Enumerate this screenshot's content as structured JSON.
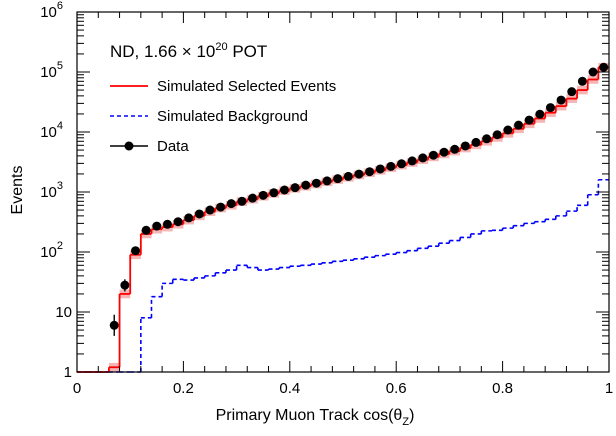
{
  "chart_data": {
    "type": "line",
    "annotation": {
      "prefix": "ND, 1.66 × 10",
      "exponent": "20",
      "suffix": " POT"
    },
    "xlabel": {
      "prefix": "Primary Muon Track cos(θ",
      "subscript": "Z",
      "suffix": ")"
    },
    "ylabel": "Events",
    "xlim": [
      0,
      1
    ],
    "ylim": [
      1,
      1000000
    ],
    "yscale": "log",
    "x_ticks": [
      {
        "value": 0,
        "label": "0"
      },
      {
        "value": 0.2,
        "label": "0.2"
      },
      {
        "value": 0.4,
        "label": "0.4"
      },
      {
        "value": 0.6,
        "label": "0.6"
      },
      {
        "value": 0.8,
        "label": "0.8"
      },
      {
        "value": 1,
        "label": "1"
      }
    ],
    "y_ticks": [
      {
        "value": 1,
        "label": "1",
        "exp": ""
      },
      {
        "value": 10,
        "label": "10",
        "exp": ""
      },
      {
        "value": 100,
        "label": "10",
        "exp": "2"
      },
      {
        "value": 1000,
        "label": "10",
        "exp": "3"
      },
      {
        "value": 10000,
        "label": "10",
        "exp": "4"
      },
      {
        "value": 100000,
        "label": "10",
        "exp": "5"
      },
      {
        "value": 1000000,
        "label": "10",
        "exp": "6"
      }
    ],
    "grid": false,
    "legend_position": "top-left",
    "bin_edges": [
      0,
      0.02,
      0.04,
      0.06,
      0.08,
      0.1,
      0.12,
      0.14,
      0.16,
      0.18,
      0.2,
      0.22,
      0.24,
      0.26,
      0.28,
      0.3,
      0.32,
      0.34,
      0.36,
      0.38,
      0.4,
      0.42,
      0.44,
      0.46,
      0.48,
      0.5,
      0.52,
      0.54,
      0.56,
      0.58,
      0.6,
      0.62,
      0.64,
      0.66,
      0.68,
      0.7,
      0.72,
      0.74,
      0.76,
      0.78,
      0.8,
      0.82,
      0.84,
      0.86,
      0.88,
      0.9,
      0.92,
      0.94,
      0.96,
      0.98,
      1.0
    ],
    "series": [
      {
        "name": "Simulated Selected Events",
        "style": "histogram",
        "color": "#ff0000",
        "band_color": "#f4a8a8",
        "values": [
          1,
          1,
          1,
          1.2,
          20,
          90,
          200,
          240,
          260,
          290,
          340,
          400,
          470,
          540,
          600,
          690,
          760,
          850,
          950,
          1050,
          1150,
          1250,
          1360,
          1480,
          1610,
          1760,
          1920,
          2100,
          2300,
          2550,
          2800,
          3100,
          3450,
          3850,
          4300,
          4800,
          5400,
          6100,
          7000,
          8100,
          9500,
          11300,
          13700,
          16800,
          21000,
          27000,
          36000,
          50000,
          75000,
          120000
        ]
      },
      {
        "name": "Simulated Background",
        "style": "histogram",
        "color": "#0000ff",
        "dashed": true,
        "values": [
          1,
          1,
          1,
          1,
          1,
          1,
          8,
          18,
          30,
          35,
          34,
          37,
          40,
          45,
          50,
          60,
          55,
          50,
          52,
          55,
          58,
          60,
          63,
          66,
          70,
          73,
          77,
          82,
          87,
          92,
          98,
          105,
          115,
          125,
          140,
          155,
          175,
          200,
          225,
          230,
          250,
          275,
          300,
          320,
          350,
          400,
          480,
          600,
          900,
          1600
        ]
      },
      {
        "name": "Data",
        "style": "points",
        "color": "#000000",
        "x": [
          0.07,
          0.09,
          0.11,
          0.13,
          0.15,
          0.17,
          0.19,
          0.21,
          0.23,
          0.25,
          0.27,
          0.29,
          0.31,
          0.33,
          0.35,
          0.37,
          0.39,
          0.41,
          0.43,
          0.45,
          0.47,
          0.49,
          0.51,
          0.53,
          0.55,
          0.57,
          0.59,
          0.61,
          0.63,
          0.65,
          0.67,
          0.69,
          0.71,
          0.73,
          0.75,
          0.77,
          0.79,
          0.81,
          0.83,
          0.85,
          0.87,
          0.89,
          0.91,
          0.93,
          0.95,
          0.97,
          0.99
        ],
        "y": [
          6,
          28,
          105,
          230,
          270,
          290,
          320,
          370,
          430,
          500,
          560,
          640,
          700,
          790,
          880,
          970,
          1080,
          1180,
          1300,
          1400,
          1530,
          1670,
          1820,
          1990,
          2180,
          2420,
          2670,
          2950,
          3300,
          3700,
          4100,
          4600,
          5150,
          5850,
          6700,
          7700,
          9000,
          10800,
          13000,
          15800,
          19800,
          25500,
          34000,
          47000,
          70000,
          100000,
          120000
        ],
        "err_low": [
          4,
          22,
          95,
          218,
          257,
          277,
          306,
          356,
          415,
          484,
          544,
          622,
          682,
          770,
          859,
          947,
          1055,
          1155,
          1270,
          1370,
          1500,
          1635,
          1780,
          1950,
          2135,
          2370,
          2620,
          2895,
          3240,
          3640,
          4035,
          4530,
          5080,
          5770,
          6620,
          7610,
          8900,
          10690,
          12880,
          15670,
          19650,
          25340,
          33810,
          46780,
          69730,
          99680,
          119650
        ],
        "err_high": [
          9,
          35,
          116,
          243,
          284,
          304,
          334,
          385,
          445,
          517,
          577,
          660,
          719,
          810,
          900,
          993,
          1105,
          1205,
          1330,
          1430,
          1560,
          1705,
          1860,
          2030,
          2225,
          2470,
          2720,
          3005,
          3360,
          3760,
          4165,
          4670,
          5220,
          5930,
          6780,
          7790,
          9100,
          10910,
          13120,
          15930,
          19950,
          25660,
          34190,
          47220,
          70270,
          100320,
          120350
        ]
      }
    ]
  }
}
